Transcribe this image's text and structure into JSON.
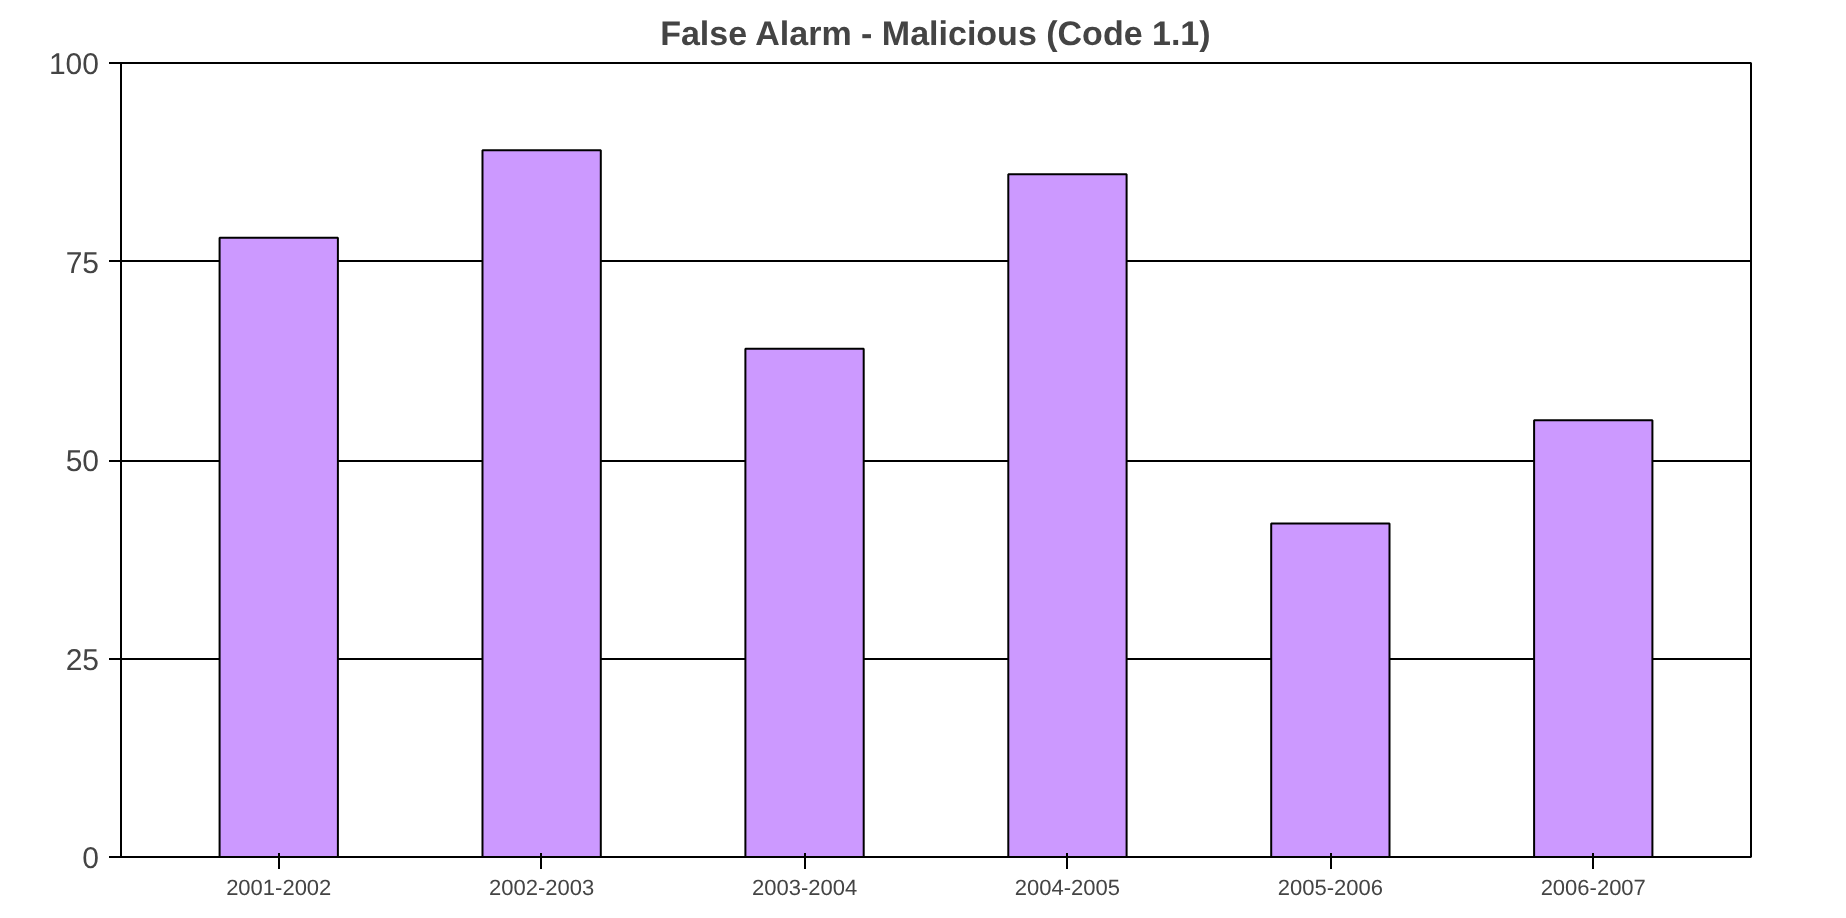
{
  "chart_data": {
    "type": "bar",
    "title": "False Alarm - Malicious (Code 1.1)",
    "categories": [
      "2001-2002",
      "2002-2003",
      "2003-2004",
      "2004-2005",
      "2005-2006",
      "2006-2007"
    ],
    "values": [
      78,
      89,
      64,
      86,
      42,
      55
    ],
    "color": "#cc99ff",
    "ylim": [
      0,
      100
    ],
    "yticks": [
      0,
      25,
      50,
      75,
      100
    ],
    "grid": "y"
  }
}
